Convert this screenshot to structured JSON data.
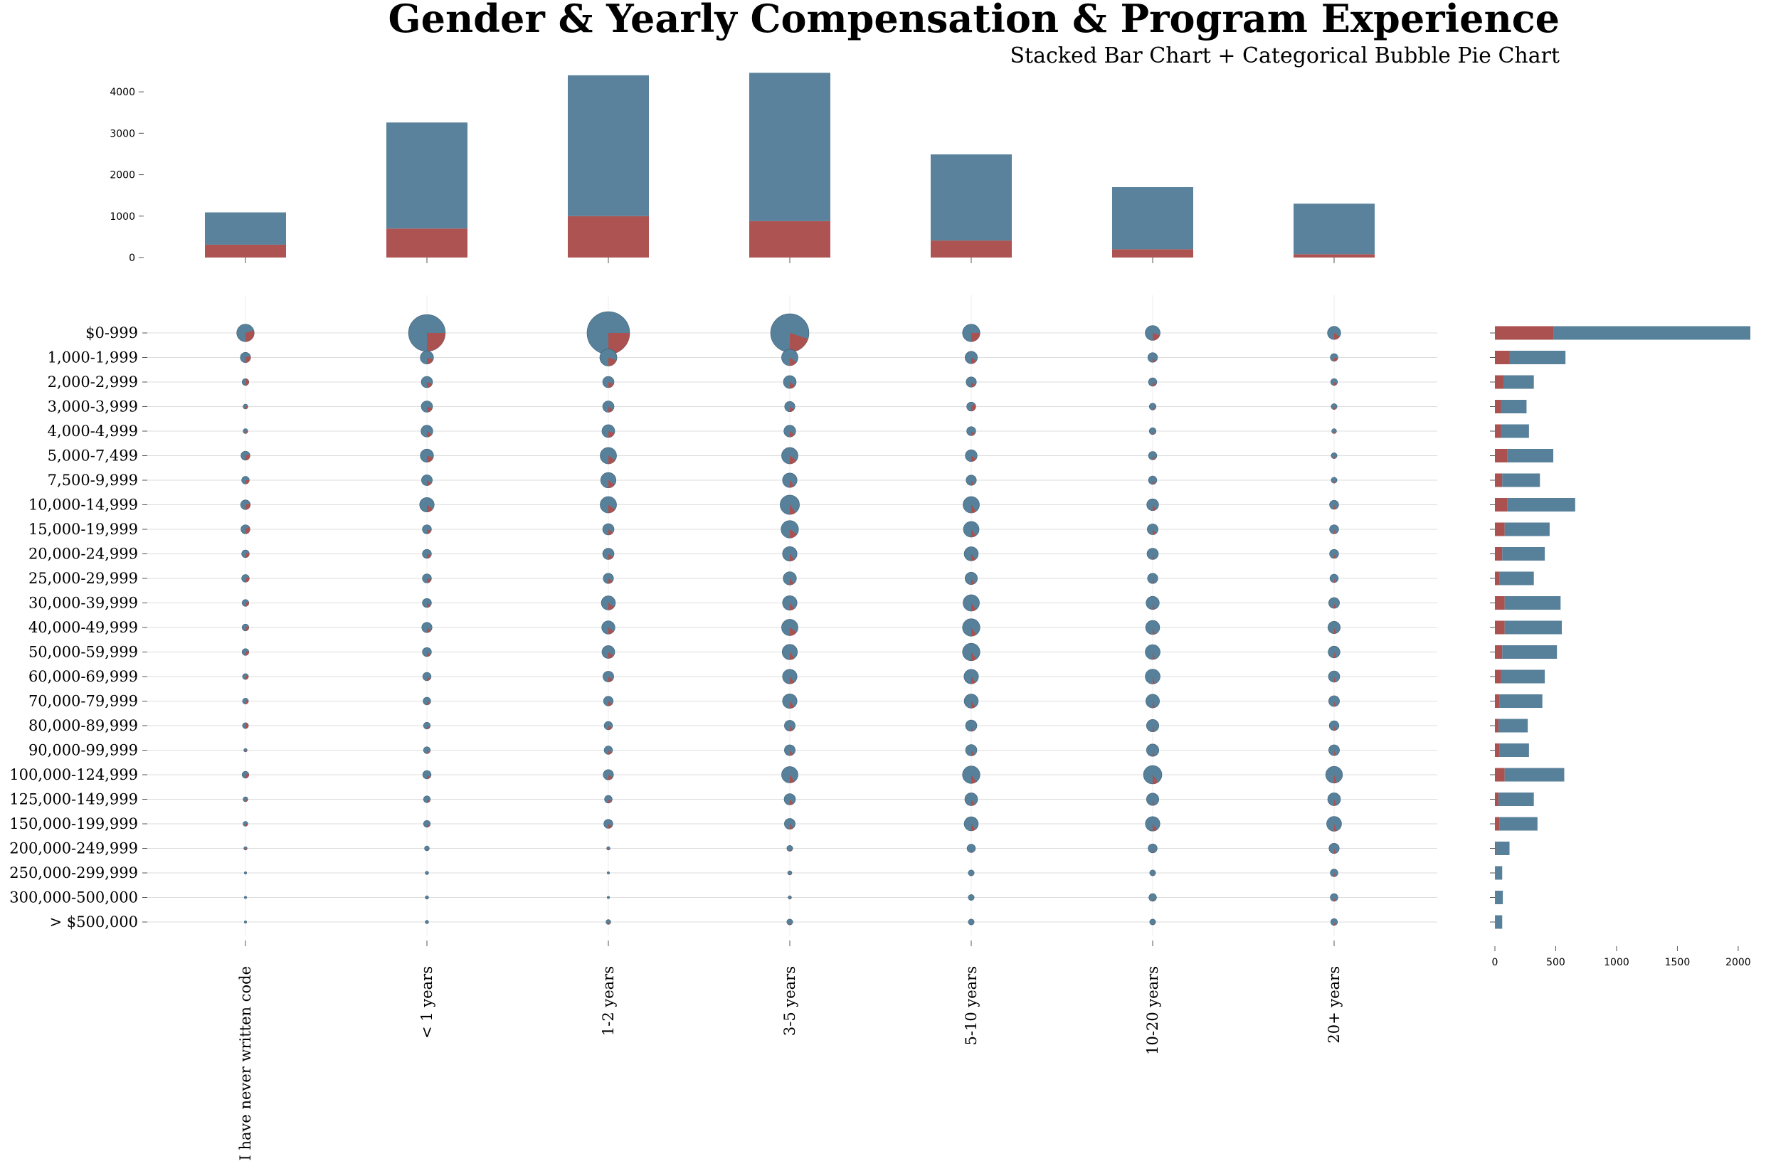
{
  "title": "Gender & Yearly Compensation & Program Experience",
  "subtitle": "Stacked Bar Chart + Categorical Bubble Pie Chart",
  "colors": {
    "male": "#57809a",
    "female": "#ab514f",
    "grid": "#dddddd"
  },
  "chart_data": [
    {
      "type": "bar",
      "stacked": true,
      "categories": [
        "I have never written code",
        "< 1 years",
        "1-2 years",
        "3-5 years",
        "5-10 years",
        "10-20 years",
        "20+ years"
      ],
      "series": [
        {
          "color": "#ab514f",
          "values": [
            310,
            700,
            1000,
            880,
            410,
            200,
            80
          ]
        },
        {
          "color": "#57809a",
          "values": [
            780,
            2560,
            3400,
            3580,
            2080,
            1500,
            1220
          ]
        }
      ],
      "ticks": [
        "0",
        "1000",
        "2000",
        "3000",
        "4000"
      ],
      "ylim": [
        0,
        4500
      ]
    },
    {
      "type": "scatter",
      "subtype": "bubble-pie",
      "x_categories": [
        "I have never written code",
        "< 1 years",
        "1-2 years",
        "3-5 years",
        "5-10 years",
        "10-20 years",
        "20+ years"
      ],
      "y_categories": [
        "$0-999",
        "1,000-1,999",
        "2,000-2,999",
        "3,000-3,999",
        "4,000-4,999",
        "5,000-7,499",
        "7,500-9,999",
        "10,000-14,999",
        "15,000-19,999",
        "20,000-24,999",
        "25,000-29,999",
        "30,000-39,999",
        "40,000-49,999",
        "50,000-59,999",
        "60,000-69,999",
        "70,000-79,999",
        "80,000-89,999",
        "90,000-99,999",
        "100,000-124,999",
        "125,000-149,999",
        "150,000-199,999",
        "200,000-249,999",
        "250,000-299,999",
        "300,000-500,000",
        "> $500,000"
      ],
      "totals": [
        [
          260,
          1150,
          1550,
          1250,
          260,
          190,
          150
        ],
        [
          90,
          150,
          250,
          230,
          130,
          80,
          50
        ],
        [
          40,
          110,
          110,
          140,
          90,
          60,
          40
        ],
        [
          20,
          110,
          110,
          90,
          70,
          40,
          30
        ],
        [
          20,
          120,
          140,
          120,
          70,
          40,
          20
        ],
        [
          70,
          150,
          230,
          230,
          120,
          60,
          30
        ],
        [
          50,
          100,
          200,
          180,
          90,
          60,
          30
        ],
        [
          80,
          180,
          230,
          320,
          230,
          120,
          70
        ],
        [
          70,
          70,
          110,
          260,
          210,
          100,
          70
        ],
        [
          50,
          70,
          110,
          180,
          170,
          110,
          70
        ],
        [
          50,
          70,
          90,
          150,
          130,
          90,
          60
        ],
        [
          40,
          70,
          170,
          180,
          230,
          150,
          100
        ],
        [
          40,
          90,
          150,
          230,
          260,
          170,
          130
        ],
        [
          40,
          70,
          140,
          200,
          260,
          190,
          120
        ],
        [
          30,
          60,
          100,
          180,
          180,
          190,
          110
        ],
        [
          30,
          50,
          80,
          180,
          170,
          160,
          100
        ],
        [
          30,
          40,
          60,
          100,
          110,
          130,
          80
        ],
        [
          10,
          40,
          60,
          100,
          110,
          130,
          100
        ],
        [
          40,
          60,
          90,
          230,
          260,
          290,
          240
        ],
        [
          20,
          40,
          50,
          110,
          140,
          130,
          140
        ],
        [
          20,
          40,
          70,
          100,
          170,
          180,
          190
        ],
        [
          10,
          20,
          10,
          30,
          60,
          70,
          90
        ],
        [
          5,
          10,
          5,
          15,
          30,
          30,
          50
        ],
        [
          5,
          10,
          5,
          10,
          30,
          50,
          50
        ],
        [
          5,
          10,
          20,
          30,
          30,
          30,
          40
        ]
      ],
      "female_share": [
        [
          0.3,
          0.25,
          0.25,
          0.2,
          0.25,
          0.2,
          0.15
        ],
        [
          0.3,
          0.2,
          0.2,
          0.15,
          0.15,
          0.1,
          0.2
        ],
        [
          0.45,
          0.2,
          0.2,
          0.15,
          0.15,
          0.15,
          0.15
        ],
        [
          0.3,
          0.2,
          0.15,
          0.15,
          0.35,
          0.1,
          0.1
        ],
        [
          0.25,
          0.15,
          0.2,
          0.15,
          0.15,
          0.1,
          0.1
        ],
        [
          0.3,
          0.2,
          0.15,
          0.15,
          0.15,
          0.1,
          0.05
        ],
        [
          0.25,
          0.15,
          0.15,
          0.1,
          0.1,
          0.1,
          0.05
        ],
        [
          0.3,
          0.15,
          0.15,
          0.1,
          0.1,
          0.1,
          0.05
        ],
        [
          0.35,
          0.2,
          0.15,
          0.15,
          0.1,
          0.1,
          0.05
        ],
        [
          0.3,
          0.2,
          0.15,
          0.1,
          0.1,
          0.05,
          0.05
        ],
        [
          0.3,
          0.2,
          0.15,
          0.1,
          0.1,
          0.05,
          0.05
        ],
        [
          0.3,
          0.15,
          0.15,
          0.1,
          0.1,
          0.05,
          0.05
        ],
        [
          0.3,
          0.15,
          0.15,
          0.15,
          0.1,
          0.05,
          0.05
        ],
        [
          0.3,
          0.15,
          0.15,
          0.1,
          0.1,
          0.05,
          0.05
        ],
        [
          0.35,
          0.15,
          0.15,
          0.1,
          0.1,
          0.05,
          0.05
        ],
        [
          0.3,
          0.15,
          0.15,
          0.1,
          0.1,
          0.05,
          0.05
        ],
        [
          0.45,
          0.15,
          0.15,
          0.1,
          0.05,
          0.05,
          0.05
        ],
        [
          0.25,
          0.15,
          0.15,
          0.1,
          0.1,
          0.05,
          0.05
        ],
        [
          0.3,
          0.15,
          0.15,
          0.1,
          0.1,
          0.1,
          0.05
        ],
        [
          0.25,
          0.15,
          0.15,
          0.1,
          0.1,
          0.05,
          0.05
        ],
        [
          0.25,
          0.15,
          0.15,
          0.1,
          0.1,
          0.1,
          0.05
        ],
        [
          0.25,
          0.1,
          0.1,
          0.05,
          0.05,
          0.05,
          0.05
        ],
        [
          0.25,
          0.1,
          0.1,
          0.05,
          0.05,
          0.05,
          0.05
        ],
        [
          0.25,
          0.1,
          0.1,
          0.05,
          0.05,
          0.05,
          0.05
        ],
        [
          0.25,
          0.1,
          0.1,
          0.05,
          0.05,
          0.05,
          0.05
        ]
      ]
    },
    {
      "type": "bar",
      "orientation": "horizontal",
      "stacked": true,
      "categories": [
        "$0-999",
        "1,000-1,999",
        "2,000-2,999",
        "3,000-3,999",
        "4,000-4,999",
        "5,000-7,499",
        "7,500-9,999",
        "10,000-14,999",
        "15,000-19,999",
        "20,000-24,999",
        "25,000-29,999",
        "30,000-39,999",
        "40,000-49,999",
        "50,000-59,999",
        "60,000-69,999",
        "70,000-79,999",
        "80,000-89,999",
        "90,000-99,999",
        "100,000-124,999",
        "125,000-149,999",
        "150,000-199,999",
        "200,000-249,999",
        "250,000-299,999",
        "300,000-500,000",
        "> $500,000"
      ],
      "series": [
        {
          "color": "#ab514f",
          "values": [
            480,
            120,
            70,
            50,
            50,
            100,
            60,
            100,
            80,
            60,
            40,
            80,
            80,
            60,
            50,
            40,
            30,
            40,
            80,
            30,
            40,
            10,
            5,
            5,
            5
          ]
        },
        {
          "color": "#57809a",
          "values": [
            1620,
            460,
            250,
            210,
            230,
            380,
            310,
            560,
            370,
            350,
            280,
            460,
            470,
            450,
            360,
            350,
            240,
            240,
            490,
            290,
            310,
            110,
            55,
            60,
            55
          ]
        }
      ],
      "ticks": [
        "0",
        "500",
        "1000",
        "1500",
        "2000"
      ],
      "xlim": [
        0,
        2100
      ]
    }
  ]
}
